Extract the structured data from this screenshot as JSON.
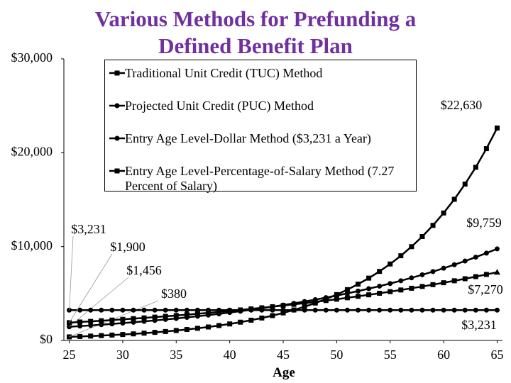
{
  "chart_data": {
    "type": "line",
    "title": "Various Methods for Prefunding a Defined Benefit Plan",
    "x_label": "Age",
    "x": [
      25,
      26,
      27,
      28,
      29,
      30,
      31,
      32,
      33,
      34,
      35,
      36,
      37,
      38,
      39,
      40,
      41,
      42,
      43,
      44,
      45,
      46,
      47,
      48,
      49,
      50,
      51,
      52,
      53,
      54,
      55,
      56,
      57,
      58,
      59,
      60,
      61,
      62,
      63,
      64,
      65
    ],
    "xlim": [
      24.5,
      65.5
    ],
    "xticks": [
      25,
      30,
      35,
      40,
      45,
      50,
      55,
      60,
      65
    ],
    "ylim": [
      0,
      30000
    ],
    "yticks": [
      {
        "value": 0,
        "label": "$0"
      },
      {
        "value": 10000,
        "label": "$10,000"
      },
      {
        "value": 20000,
        "label": "$20,000"
      },
      {
        "value": 30000,
        "label": "$30,000"
      }
    ],
    "series": [
      {
        "name": "Traditional Unit Credit (TUC) Method",
        "color": "#000000",
        "marker": "square",
        "values": [
          380,
          421,
          466,
          516,
          572,
          633,
          701,
          777,
          860,
          953,
          1055,
          1169,
          1295,
          1434,
          1588,
          1759,
          1948,
          2158,
          2390,
          2647,
          2932,
          3247,
          3597,
          3984,
          4412,
          4887,
          5413,
          5995,
          6640,
          7355,
          8146,
          9023,
          9994,
          11069,
          12260,
          13579,
          15040,
          16659,
          18451,
          20436,
          22630
        ],
        "value_labels": [
          "$380",
          null,
          null,
          null,
          null,
          null,
          null,
          null,
          null,
          null,
          null,
          null,
          null,
          null,
          null,
          null,
          null,
          null,
          null,
          null,
          null,
          null,
          null,
          null,
          null,
          null,
          null,
          null,
          null,
          null,
          null,
          null,
          null,
          null,
          null,
          null,
          null,
          null,
          null,
          null,
          "$22,630"
        ]
      },
      {
        "name": "Projected Unit Credit (PUC) Method",
        "color": "#000000",
        "marker": "circle",
        "values": [
          1456,
          1527,
          1601,
          1679,
          1761,
          1847,
          1937,
          2031,
          2130,
          2234,
          2343,
          2457,
          2577,
          2702,
          2834,
          2972,
          3117,
          3268,
          3428,
          3595,
          3770,
          3953,
          4146,
          4348,
          4560,
          4782,
          5015,
          5259,
          5515,
          5784,
          6066,
          6361,
          6671,
          6996,
          7337,
          7694,
          8069,
          8462,
          8874,
          9306,
          9759
        ],
        "value_labels": [
          "$1,456",
          null,
          null,
          null,
          null,
          null,
          null,
          null,
          null,
          null,
          null,
          null,
          null,
          null,
          null,
          null,
          null,
          null,
          null,
          null,
          null,
          null,
          null,
          null,
          null,
          null,
          null,
          null,
          null,
          null,
          null,
          null,
          null,
          null,
          null,
          null,
          null,
          null,
          null,
          null,
          "$9,759"
        ]
      },
      {
        "name": "Entry Age Level-Dollar Method ($3,231 a Year)",
        "color": "#000000",
        "marker": "circle",
        "values": [
          3231,
          3231,
          3231,
          3231,
          3231,
          3231,
          3231,
          3231,
          3231,
          3231,
          3231,
          3231,
          3231,
          3231,
          3231,
          3231,
          3231,
          3231,
          3231,
          3231,
          3231,
          3231,
          3231,
          3231,
          3231,
          3231,
          3231,
          3231,
          3231,
          3231,
          3231,
          3231,
          3231,
          3231,
          3231,
          3231,
          3231,
          3231,
          3231,
          3231,
          3231
        ],
        "value_labels": [
          "$3,231",
          null,
          null,
          null,
          null,
          null,
          null,
          null,
          null,
          null,
          null,
          null,
          null,
          null,
          null,
          null,
          null,
          null,
          null,
          null,
          null,
          null,
          null,
          null,
          null,
          null,
          null,
          null,
          null,
          null,
          null,
          null,
          null,
          null,
          null,
          null,
          null,
          null,
          null,
          null,
          "$3,231"
        ]
      },
      {
        "name": "Entry Age Level-Percentage-of-Salary Method (7.27 Percent of Salary)",
        "color": "#000000",
        "marker": "triangle",
        "values": [
          1900,
          1965,
          2032,
          2101,
          2173,
          2247,
          2324,
          2403,
          2485,
          2570,
          2658,
          2748,
          2842,
          2939,
          3039,
          3143,
          3250,
          3361,
          3476,
          3594,
          3717,
          3844,
          3975,
          4110,
          4251,
          4396,
          4546,
          4701,
          4861,
          5027,
          5199,
          5376,
          5560,
          5749,
          5946,
          6148,
          6358,
          6575,
          6800,
          7032,
          7270
        ],
        "value_labels": [
          "$1,900",
          null,
          null,
          null,
          null,
          null,
          null,
          null,
          null,
          null,
          null,
          null,
          null,
          null,
          null,
          null,
          null,
          null,
          null,
          null,
          null,
          null,
          null,
          null,
          null,
          null,
          null,
          null,
          null,
          null,
          null,
          null,
          null,
          null,
          null,
          null,
          null,
          null,
          null,
          null,
          "$7,270"
        ]
      }
    ]
  }
}
